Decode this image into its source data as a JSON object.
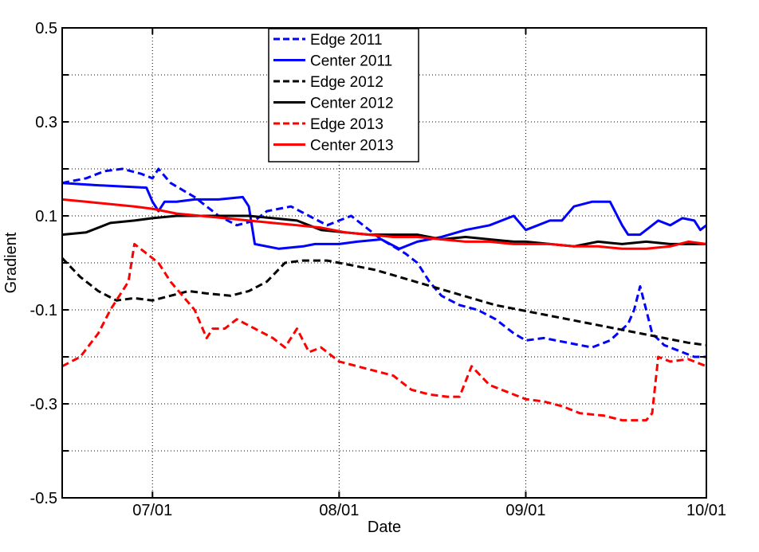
{
  "chart_data": {
    "type": "line",
    "title": "",
    "xlabel": "Date",
    "ylabel": "Gradient",
    "x_axis": {
      "type": "date",
      "min": "2000-06-16",
      "max": "2000-10-01",
      "ticks": [
        "2000-07-01",
        "2000-08-01",
        "2000-09-01",
        "2000-10-01"
      ],
      "tick_labels": [
        "07/01",
        "08/01",
        "09/01",
        "10/01"
      ]
    },
    "y_axis": {
      "min": -0.5,
      "max": 0.5,
      "ticks": [
        -0.5,
        -0.4,
        -0.3,
        -0.2,
        -0.1,
        0,
        0.1,
        0.2,
        0.3,
        0.4,
        0.5
      ],
      "tick_labels": [
        "-0.5",
        "",
        "-0.3",
        "",
        "-0.1",
        "",
        "0.1",
        "",
        "0.3",
        "",
        "0.5"
      ]
    },
    "grid": true,
    "legend": "top-center",
    "series": [
      {
        "name": "Edge 2011",
        "color": "#0000ff",
        "dash": true,
        "points": [
          [
            "2000-06-16",
            0.17
          ],
          [
            "2000-06-20",
            0.18
          ],
          [
            "2000-06-23",
            0.195
          ],
          [
            "2000-06-26",
            0.2
          ],
          [
            "2000-06-29",
            0.19
          ],
          [
            "2000-07-01",
            0.18
          ],
          [
            "2000-07-02",
            0.2
          ],
          [
            "2000-07-04",
            0.17
          ],
          [
            "2000-07-08",
            0.14
          ],
          [
            "2000-07-12",
            0.1
          ],
          [
            "2000-07-15",
            0.08
          ],
          [
            "2000-07-18",
            0.09
          ],
          [
            "2000-07-19",
            0.1
          ],
          [
            "2000-07-20",
            0.11
          ],
          [
            "2000-07-24",
            0.12
          ],
          [
            "2000-07-27",
            0.1
          ],
          [
            "2000-07-30",
            0.08
          ],
          [
            "2000-08-01",
            0.09
          ],
          [
            "2000-08-03",
            0.1
          ],
          [
            "2000-08-05",
            0.08
          ],
          [
            "2000-08-08",
            0.05
          ],
          [
            "2000-08-12",
            0.02
          ],
          [
            "2000-08-14",
            0.0
          ],
          [
            "2000-08-16",
            -0.04
          ],
          [
            "2000-08-18",
            -0.07
          ],
          [
            "2000-08-21",
            -0.09
          ],
          [
            "2000-08-24",
            -0.1
          ],
          [
            "2000-08-27",
            -0.12
          ],
          [
            "2000-08-30",
            -0.15
          ],
          [
            "2000-09-01",
            -0.165
          ],
          [
            "2000-09-04",
            -0.16
          ],
          [
            "2000-09-08",
            -0.17
          ],
          [
            "2000-09-12",
            -0.18
          ],
          [
            "2000-09-15",
            -0.165
          ],
          [
            "2000-09-18",
            -0.13
          ],
          [
            "2000-09-19",
            -0.1
          ],
          [
            "2000-09-20",
            -0.05
          ],
          [
            "2000-09-21",
            -0.1
          ],
          [
            "2000-09-22",
            -0.15
          ],
          [
            "2000-09-24",
            -0.175
          ],
          [
            "2000-09-27",
            -0.19
          ],
          [
            "2000-09-29",
            -0.2
          ],
          [
            "2000-10-01",
            -0.2
          ]
        ]
      },
      {
        "name": "Center 2011",
        "color": "#0000ff",
        "dash": false,
        "points": [
          [
            "2000-06-16",
            0.17
          ],
          [
            "2000-06-22",
            0.165
          ],
          [
            "2000-06-30",
            0.16
          ],
          [
            "2000-07-01",
            0.13
          ],
          [
            "2000-07-02",
            0.11
          ],
          [
            "2000-07-03",
            0.13
          ],
          [
            "2000-07-05",
            0.13
          ],
          [
            "2000-07-08",
            0.135
          ],
          [
            "2000-07-12",
            0.135
          ],
          [
            "2000-07-16",
            0.14
          ],
          [
            "2000-07-17",
            0.12
          ],
          [
            "2000-07-18",
            0.04
          ],
          [
            "2000-07-22",
            0.03
          ],
          [
            "2000-07-26",
            0.035
          ],
          [
            "2000-07-28",
            0.04
          ],
          [
            "2000-08-01",
            0.04
          ],
          [
            "2000-08-04",
            0.045
          ],
          [
            "2000-08-08",
            0.05
          ],
          [
            "2000-08-11",
            0.03
          ],
          [
            "2000-08-14",
            0.045
          ],
          [
            "2000-08-18",
            0.055
          ],
          [
            "2000-08-22",
            0.07
          ],
          [
            "2000-08-26",
            0.08
          ],
          [
            "2000-08-30",
            0.1
          ],
          [
            "2000-09-01",
            0.07
          ],
          [
            "2000-09-03",
            0.08
          ],
          [
            "2000-09-05",
            0.09
          ],
          [
            "2000-09-07",
            0.09
          ],
          [
            "2000-09-09",
            0.12
          ],
          [
            "2000-09-12",
            0.13
          ],
          [
            "2000-09-15",
            0.13
          ],
          [
            "2000-09-17",
            0.08
          ],
          [
            "2000-09-18",
            0.06
          ],
          [
            "2000-09-20",
            0.06
          ],
          [
            "2000-09-23",
            0.09
          ],
          [
            "2000-09-25",
            0.08
          ],
          [
            "2000-09-27",
            0.095
          ],
          [
            "2000-09-29",
            0.09
          ],
          [
            "2000-09-30",
            0.07
          ],
          [
            "2000-10-01",
            0.08
          ]
        ]
      },
      {
        "name": "Edge 2012",
        "color": "#000000",
        "dash": true,
        "points": [
          [
            "2000-06-16",
            0.01
          ],
          [
            "2000-06-19",
            -0.03
          ],
          [
            "2000-06-22",
            -0.06
          ],
          [
            "2000-06-25",
            -0.08
          ],
          [
            "2000-06-28",
            -0.075
          ],
          [
            "2000-07-01",
            -0.08
          ],
          [
            "2000-07-04",
            -0.07
          ],
          [
            "2000-07-07",
            -0.06
          ],
          [
            "2000-07-10",
            -0.065
          ],
          [
            "2000-07-14",
            -0.07
          ],
          [
            "2000-07-17",
            -0.06
          ],
          [
            "2000-07-20",
            -0.04
          ],
          [
            "2000-07-23",
            0.0
          ],
          [
            "2000-07-26",
            0.005
          ],
          [
            "2000-07-30",
            0.005
          ],
          [
            "2000-08-03",
            -0.005
          ],
          [
            "2000-08-07",
            -0.015
          ],
          [
            "2000-08-11",
            -0.03
          ],
          [
            "2000-08-15",
            -0.045
          ],
          [
            "2000-08-19",
            -0.06
          ],
          [
            "2000-08-23",
            -0.075
          ],
          [
            "2000-08-27",
            -0.09
          ],
          [
            "2000-08-31",
            -0.1
          ],
          [
            "2000-09-04",
            -0.11
          ],
          [
            "2000-09-08",
            -0.12
          ],
          [
            "2000-09-12",
            -0.13
          ],
          [
            "2000-09-16",
            -0.14
          ],
          [
            "2000-09-20",
            -0.15
          ],
          [
            "2000-09-24",
            -0.16
          ],
          [
            "2000-09-28",
            -0.17
          ],
          [
            "2000-10-01",
            -0.175
          ]
        ]
      },
      {
        "name": "Center 2012",
        "color": "#000000",
        "dash": false,
        "points": [
          [
            "2000-06-16",
            0.06
          ],
          [
            "2000-06-20",
            0.065
          ],
          [
            "2000-06-24",
            0.085
          ],
          [
            "2000-06-28",
            0.09
          ],
          [
            "2000-07-01",
            0.095
          ],
          [
            "2000-07-05",
            0.1
          ],
          [
            "2000-07-09",
            0.1
          ],
          [
            "2000-07-13",
            0.1
          ],
          [
            "2000-07-17",
            0.1
          ],
          [
            "2000-07-21",
            0.095
          ],
          [
            "2000-07-25",
            0.09
          ],
          [
            "2000-07-29",
            0.07
          ],
          [
            "2000-08-02",
            0.065
          ],
          [
            "2000-08-06",
            0.06
          ],
          [
            "2000-08-10",
            0.06
          ],
          [
            "2000-08-14",
            0.06
          ],
          [
            "2000-08-18",
            0.05
          ],
          [
            "2000-08-22",
            0.055
          ],
          [
            "2000-08-26",
            0.05
          ],
          [
            "2000-08-30",
            0.045
          ],
          [
            "2000-09-01",
            0.045
          ],
          [
            "2000-09-05",
            0.04
          ],
          [
            "2000-09-09",
            0.035
          ],
          [
            "2000-09-13",
            0.045
          ],
          [
            "2000-09-17",
            0.04
          ],
          [
            "2000-09-21",
            0.045
          ],
          [
            "2000-09-25",
            0.04
          ],
          [
            "2000-09-29",
            0.04
          ],
          [
            "2000-10-01",
            0.04
          ]
        ]
      },
      {
        "name": "Edge 2013",
        "color": "#ff0000",
        "dash": true,
        "points": [
          [
            "2000-06-16",
            -0.22
          ],
          [
            "2000-06-19",
            -0.2
          ],
          [
            "2000-06-22",
            -0.15
          ],
          [
            "2000-06-24",
            -0.1
          ],
          [
            "2000-06-26",
            -0.06
          ],
          [
            "2000-06-27",
            -0.04
          ],
          [
            "2000-06-28",
            0.04
          ],
          [
            "2000-06-30",
            0.02
          ],
          [
            "2000-07-02",
            0.0
          ],
          [
            "2000-07-04",
            -0.04
          ],
          [
            "2000-07-06",
            -0.07
          ],
          [
            "2000-07-08",
            -0.1
          ],
          [
            "2000-07-10",
            -0.16
          ],
          [
            "2000-07-11",
            -0.14
          ],
          [
            "2000-07-13",
            -0.14
          ],
          [
            "2000-07-15",
            -0.12
          ],
          [
            "2000-07-18",
            -0.14
          ],
          [
            "2000-07-21",
            -0.16
          ],
          [
            "2000-07-23",
            -0.18
          ],
          [
            "2000-07-25",
            -0.14
          ],
          [
            "2000-07-27",
            -0.19
          ],
          [
            "2000-07-29",
            -0.18
          ],
          [
            "2000-08-01",
            -0.21
          ],
          [
            "2000-08-04",
            -0.22
          ],
          [
            "2000-08-07",
            -0.23
          ],
          [
            "2000-08-10",
            -0.24
          ],
          [
            "2000-08-13",
            -0.27
          ],
          [
            "2000-08-16",
            -0.28
          ],
          [
            "2000-08-19",
            -0.285
          ],
          [
            "2000-08-21",
            -0.285
          ],
          [
            "2000-08-23",
            -0.22
          ],
          [
            "2000-08-26",
            -0.26
          ],
          [
            "2000-08-29",
            -0.275
          ],
          [
            "2000-09-01",
            -0.29
          ],
          [
            "2000-09-04",
            -0.295
          ],
          [
            "2000-09-07",
            -0.305
          ],
          [
            "2000-09-10",
            -0.32
          ],
          [
            "2000-09-14",
            -0.325
          ],
          [
            "2000-09-17",
            -0.335
          ],
          [
            "2000-09-21",
            -0.335
          ],
          [
            "2000-09-22",
            -0.32
          ],
          [
            "2000-09-23",
            -0.2
          ],
          [
            "2000-09-25",
            -0.21
          ],
          [
            "2000-09-28",
            -0.205
          ],
          [
            "2000-10-01",
            -0.22
          ]
        ]
      },
      {
        "name": "Center 2013",
        "color": "#ff0000",
        "dash": false,
        "points": [
          [
            "2000-06-16",
            0.135
          ],
          [
            "2000-06-20",
            0.13
          ],
          [
            "2000-06-24",
            0.125
          ],
          [
            "2000-06-28",
            0.12
          ],
          [
            "2000-07-01",
            0.115
          ],
          [
            "2000-07-05",
            0.105
          ],
          [
            "2000-07-09",
            0.1
          ],
          [
            "2000-07-13",
            0.095
          ],
          [
            "2000-07-17",
            0.09
          ],
          [
            "2000-07-21",
            0.085
          ],
          [
            "2000-07-25",
            0.08
          ],
          [
            "2000-07-29",
            0.075
          ],
          [
            "2000-08-02",
            0.065
          ],
          [
            "2000-08-06",
            0.06
          ],
          [
            "2000-08-10",
            0.055
          ],
          [
            "2000-08-14",
            0.055
          ],
          [
            "2000-08-18",
            0.05
          ],
          [
            "2000-08-22",
            0.045
          ],
          [
            "2000-08-26",
            0.045
          ],
          [
            "2000-08-30",
            0.04
          ],
          [
            "2000-09-01",
            0.04
          ],
          [
            "2000-09-05",
            0.04
          ],
          [
            "2000-09-09",
            0.035
          ],
          [
            "2000-09-13",
            0.035
          ],
          [
            "2000-09-17",
            0.03
          ],
          [
            "2000-09-21",
            0.03
          ],
          [
            "2000-09-25",
            0.035
          ],
          [
            "2000-09-28",
            0.045
          ],
          [
            "2000-10-01",
            0.04
          ]
        ]
      }
    ]
  }
}
